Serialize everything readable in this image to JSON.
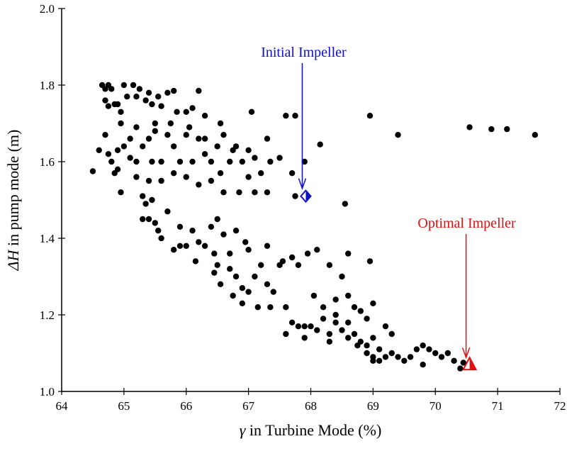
{
  "chart_data": {
    "type": "scatter",
    "xlabel_symbol": "γ",
    "xlabel_text": " in Turbine Mode (%)",
    "ylabel_symbol": "ΔH",
    "ylabel_text": " in pump mode (m)",
    "xlim": [
      64,
      72
    ],
    "ylim": [
      1.0,
      2.0
    ],
    "xticks": [
      "64",
      "65",
      "66",
      "67",
      "68",
      "69",
      "70",
      "71",
      "72"
    ],
    "yticks": [
      "1.0",
      "1.2",
      "1.4",
      "1.6",
      "1.8",
      "2.0"
    ],
    "grid": false,
    "point_color": "#000000",
    "points": [
      [
        64.5,
        1.575
      ],
      [
        64.6,
        1.63
      ],
      [
        64.65,
        1.8
      ],
      [
        64.7,
        1.79
      ],
      [
        64.75,
        1.8
      ],
      [
        64.8,
        1.79
      ],
      [
        64.7,
        1.76
      ],
      [
        64.75,
        1.745
      ],
      [
        64.85,
        1.75
      ],
      [
        64.9,
        1.75
      ],
      [
        65.0,
        1.8
      ],
      [
        64.95,
        1.73
      ],
      [
        65.05,
        1.77
      ],
      [
        65.15,
        1.8
      ],
      [
        65.2,
        1.77
      ],
      [
        65.25,
        1.79
      ],
      [
        65.35,
        1.76
      ],
      [
        65.4,
        1.78
      ],
      [
        65.45,
        1.75
      ],
      [
        65.55,
        1.77
      ],
      [
        65.6,
        1.745
      ],
      [
        65.7,
        1.78
      ],
      [
        65.8,
        1.785
      ],
      [
        65.85,
        1.73
      ],
      [
        66.0,
        1.73
      ],
      [
        66.1,
        1.74
      ],
      [
        66.2,
        1.785
      ],
      [
        66.3,
        1.72
      ],
      [
        64.7,
        1.67
      ],
      [
        64.8,
        1.6
      ],
      [
        64.85,
        1.57
      ],
      [
        64.75,
        1.62
      ],
      [
        64.9,
        1.63
      ],
      [
        65.0,
        1.64
      ],
      [
        64.95,
        1.52
      ],
      [
        65.1,
        1.66
      ],
      [
        65.2,
        1.6
      ],
      [
        65.3,
        1.64
      ],
      [
        65.4,
        1.66
      ],
      [
        65.45,
        1.6
      ],
      [
        65.5,
        1.68
      ],
      [
        65.6,
        1.6
      ],
      [
        65.7,
        1.67
      ],
      [
        65.8,
        1.64
      ],
      [
        65.9,
        1.6
      ],
      [
        66.0,
        1.67
      ],
      [
        66.1,
        1.6
      ],
      [
        66.2,
        1.66
      ],
      [
        66.3,
        1.62
      ],
      [
        66.4,
        1.6
      ],
      [
        66.5,
        1.64
      ],
      [
        66.6,
        1.67
      ],
      [
        66.7,
        1.6
      ],
      [
        66.8,
        1.64
      ],
      [
        66.9,
        1.6
      ],
      [
        67.0,
        1.63
      ],
      [
        67.1,
        1.61
      ],
      [
        67.2,
        1.57
      ],
      [
        67.3,
        1.66
      ],
      [
        67.05,
        1.73
      ],
      [
        66.55,
        1.7
      ],
      [
        66.75,
        1.63
      ],
      [
        66.3,
        1.66
      ],
      [
        64.95,
        1.7
      ],
      [
        65.2,
        1.69
      ],
      [
        65.5,
        1.7
      ],
      [
        65.75,
        1.7
      ],
      [
        66.05,
        1.69
      ],
      [
        64.9,
        1.58
      ],
      [
        65.2,
        1.56
      ],
      [
        65.4,
        1.55
      ],
      [
        65.6,
        1.55
      ],
      [
        65.8,
        1.57
      ],
      [
        66.0,
        1.56
      ],
      [
        66.2,
        1.54
      ],
      [
        66.4,
        1.55
      ],
      [
        66.6,
        1.52
      ],
      [
        66.85,
        1.52
      ],
      [
        67.1,
        1.52
      ],
      [
        67.3,
        1.52
      ],
      [
        67.5,
        1.61
      ],
      [
        67.35,
        1.6
      ],
      [
        67.0,
        1.56
      ],
      [
        66.55,
        1.57
      ],
      [
        65.1,
        1.61
      ],
      [
        65.3,
        1.51
      ],
      [
        65.35,
        1.49
      ],
      [
        65.4,
        1.45
      ],
      [
        65.5,
        1.44
      ],
      [
        65.55,
        1.42
      ],
      [
        65.6,
        1.4
      ],
      [
        65.3,
        1.45
      ],
      [
        65.45,
        1.5
      ],
      [
        65.7,
        1.47
      ],
      [
        65.9,
        1.43
      ],
      [
        66.1,
        1.42
      ],
      [
        66.0,
        1.38
      ],
      [
        66.2,
        1.39
      ],
      [
        65.8,
        1.37
      ],
      [
        66.15,
        1.34
      ],
      [
        66.4,
        1.43
      ],
      [
        66.5,
        1.45
      ],
      [
        66.6,
        1.41
      ],
      [
        66.8,
        1.42
      ],
      [
        66.95,
        1.39
      ],
      [
        67.0,
        1.37
      ],
      [
        66.45,
        1.36
      ],
      [
        66.5,
        1.33
      ],
      [
        66.45,
        1.31
      ],
      [
        66.55,
        1.28
      ],
      [
        66.7,
        1.32
      ],
      [
        66.8,
        1.3
      ],
      [
        66.9,
        1.27
      ],
      [
        67.0,
        1.26
      ],
      [
        67.1,
        1.3
      ],
      [
        67.2,
        1.33
      ],
      [
        67.3,
        1.28
      ],
      [
        67.4,
        1.26
      ],
      [
        66.75,
        1.25
      ],
      [
        66.9,
        1.23
      ],
      [
        67.15,
        1.22
      ],
      [
        67.35,
        1.22
      ],
      [
        67.6,
        1.22
      ],
      [
        67.5,
        1.33
      ],
      [
        67.7,
        1.35
      ],
      [
        67.8,
        1.33
      ],
      [
        67.95,
        1.36
      ],
      [
        68.1,
        1.37
      ],
      [
        68.3,
        1.33
      ],
      [
        68.5,
        1.3
      ],
      [
        68.6,
        1.36
      ],
      [
        68.95,
        1.34
      ],
      [
        68.4,
        1.24
      ],
      [
        68.6,
        1.25
      ],
      [
        68.7,
        1.22
      ],
      [
        68.8,
        1.21
      ],
      [
        68.9,
        1.19
      ],
      [
        69.0,
        1.23
      ],
      [
        67.7,
        1.18
      ],
      [
        67.8,
        1.17
      ],
      [
        67.9,
        1.17
      ],
      [
        68.0,
        1.17
      ],
      [
        68.1,
        1.16
      ],
      [
        68.2,
        1.19
      ],
      [
        68.3,
        1.15
      ],
      [
        68.4,
        1.18
      ],
      [
        68.5,
        1.16
      ],
      [
        68.6,
        1.14
      ],
      [
        68.7,
        1.15
      ],
      [
        68.8,
        1.13
      ],
      [
        68.9,
        1.12
      ],
      [
        69.0,
        1.14
      ],
      [
        69.1,
        1.11
      ],
      [
        69.2,
        1.17
      ],
      [
        69.3,
        1.15
      ],
      [
        68.6,
        1.18
      ],
      [
        68.4,
        1.2
      ],
      [
        68.2,
        1.22
      ],
      [
        68.05,
        1.25
      ],
      [
        68.9,
        1.1
      ],
      [
        69.0,
        1.09
      ],
      [
        69.1,
        1.08
      ],
      [
        69.2,
        1.09
      ],
      [
        69.3,
        1.1
      ],
      [
        69.4,
        1.09
      ],
      [
        69.5,
        1.08
      ],
      [
        69.6,
        1.09
      ],
      [
        69.7,
        1.11
      ],
      [
        69.8,
        1.12
      ],
      [
        69.9,
        1.11
      ],
      [
        70.0,
        1.1
      ],
      [
        70.1,
        1.09
      ],
      [
        70.2,
        1.1
      ],
      [
        70.3,
        1.08
      ],
      [
        70.4,
        1.06
      ],
      [
        70.45,
        1.075
      ],
      [
        69.8,
        1.07
      ],
      [
        69.0,
        1.08
      ],
      [
        68.75,
        1.12
      ],
      [
        68.3,
        1.13
      ],
      [
        67.9,
        1.14
      ],
      [
        67.6,
        1.15
      ],
      [
        66.7,
        1.36
      ],
      [
        66.3,
        1.38
      ],
      [
        65.9,
        1.38
      ],
      [
        67.3,
        1.38
      ],
      [
        67.55,
        1.34
      ],
      [
        67.6,
        1.72
      ],
      [
        67.75,
        1.72
      ],
      [
        68.15,
        1.645
      ],
      [
        68.95,
        1.72
      ],
      [
        69.4,
        1.67
      ],
      [
        70.55,
        1.69
      ],
      [
        70.9,
        1.685
      ],
      [
        71.15,
        1.685
      ],
      [
        71.6,
        1.67
      ],
      [
        68.55,
        1.49
      ],
      [
        67.7,
        1.57
      ],
      [
        67.9,
        1.6
      ],
      [
        67.75,
        1.51
      ]
    ],
    "annotations": [
      {
        "text": "Initial Impeller",
        "x": 67.92,
        "y": 1.51,
        "marker": "diamond",
        "color": "#1010c8"
      },
      {
        "text": "Optimal Impeller",
        "x": 70.55,
        "y": 1.07,
        "marker": "triangle",
        "color": "#e01010"
      }
    ]
  }
}
